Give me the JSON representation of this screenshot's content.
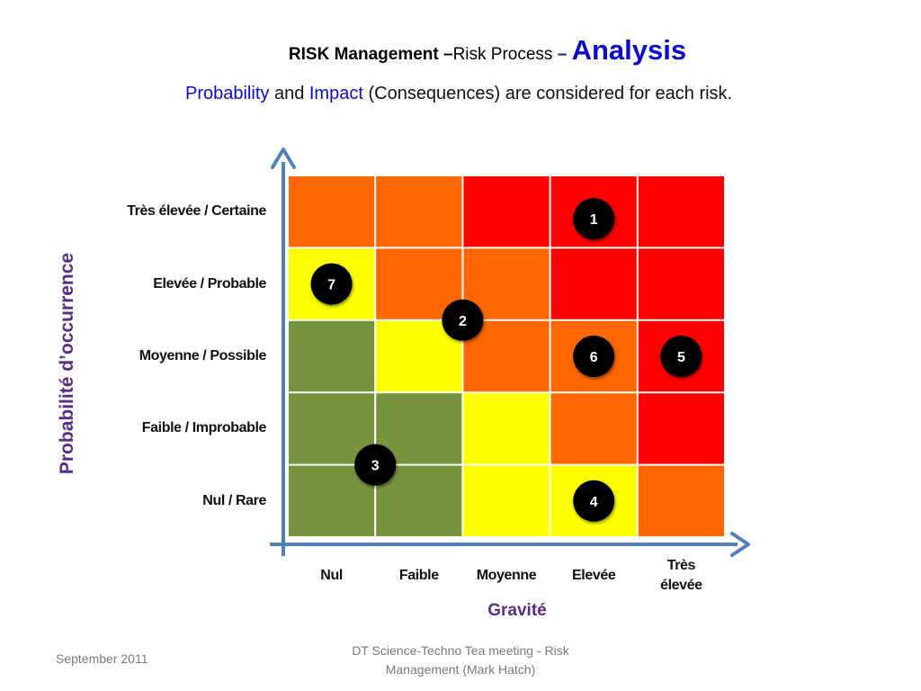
{
  "title": {
    "part1": "RISK Management –",
    "part2": "Risk Process ",
    "part3": "– ",
    "part4": "Analysis"
  },
  "subtitle": {
    "word1": "Probability",
    "word2": " and ",
    "word3": "Impact",
    "word4": " (Consequences) are considered for each risk."
  },
  "matrix": {
    "y_axis_title": "Probabilité d’occurrence",
    "x_axis_title": "Gravité",
    "rows": [
      "Très élevée / Certaine",
      "Elevée / Probable",
      "Moyenne / Possible",
      "Faible / Improbable",
      "Nul / Rare"
    ],
    "columns": [
      [
        "Nul"
      ],
      [
        "Faible"
      ],
      [
        "Moyenne"
      ],
      [
        "Elevée"
      ],
      [
        "Très",
        "élevée"
      ]
    ],
    "colors": {
      "red": "#ff0000",
      "orange": "#ff6600",
      "yellow": "#ffff00",
      "green": "#77933c",
      "axis": "#4f81bd",
      "marker": "#000000"
    },
    "cells": [
      [
        "orange",
        "orange",
        "red",
        "red",
        "red"
      ],
      [
        "yellow",
        "orange",
        "orange",
        "red",
        "red"
      ],
      [
        "green",
        "yellow",
        "orange",
        "orange",
        "red"
      ],
      [
        "green",
        "green",
        "yellow",
        "orange",
        "red"
      ],
      [
        "green",
        "green",
        "yellow",
        "yellow",
        "orange"
      ]
    ],
    "markers": [
      {
        "label": "1",
        "col": 3.5,
        "row": 0.6
      },
      {
        "label": "7",
        "col": 0.5,
        "row": 1.5
      },
      {
        "label": "2",
        "col": 2.0,
        "row": 2.0
      },
      {
        "label": "6",
        "col": 3.5,
        "row": 2.5
      },
      {
        "label": "5",
        "col": 4.5,
        "row": 2.5
      },
      {
        "label": "3",
        "col": 1.0,
        "row": 4.0
      },
      {
        "label": "4",
        "col": 3.5,
        "row": 4.5
      }
    ]
  },
  "footer": {
    "date": "September 2011",
    "line1": "DT Science-Techno Tea meeting - Risk",
    "line2": "Management (Mark Hatch)"
  }
}
